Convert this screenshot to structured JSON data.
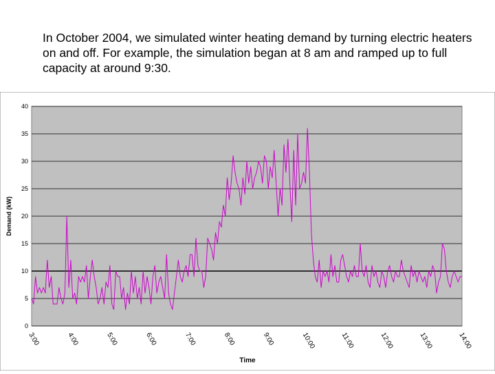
{
  "caption": "In October 2004, we simulated winter heating demand by turning electric heaters on and off.  For example, the simulation began at 8 am and ramped up to full capacity at around 9:30.",
  "colors": {
    "plot_bg": "#c0c0c0",
    "series": "#cc00cc",
    "grid": "#000000",
    "border": "#808080"
  },
  "chart_data": {
    "type": "line",
    "title": "",
    "xlabel": "Time",
    "ylabel": "Demand (kW)",
    "ylim": [
      0,
      40
    ],
    "yticks": [
      "0",
      "5",
      "10",
      "15",
      "20",
      "25",
      "30",
      "35",
      "40"
    ],
    "xlim": [
      3,
      14
    ],
    "xticks": [
      "3:00",
      "4:00",
      "5:00",
      "6:00",
      "7:00",
      "8:00",
      "9:00",
      "10:00",
      "11:00",
      "12:00",
      "13:00",
      "14:00"
    ],
    "grid": true,
    "legend": "none",
    "reference_line": 10,
    "series": [
      {
        "x": [
          3.0,
          3.05,
          3.1,
          3.15,
          3.2,
          3.25,
          3.3,
          3.35,
          3.4,
          3.45,
          3.5,
          3.55,
          3.6,
          3.65,
          3.7,
          3.75,
          3.8,
          3.85,
          3.9,
          3.95,
          4.0,
          4.05,
          4.1,
          4.15,
          4.2,
          4.25,
          4.3,
          4.35,
          4.4,
          4.45,
          4.5,
          4.55,
          4.6,
          4.65,
          4.7,
          4.75,
          4.8,
          4.85,
          4.9,
          4.95,
          5.0,
          5.05,
          5.1,
          5.15,
          5.2,
          5.25,
          5.3,
          5.35,
          5.4,
          5.45,
          5.5,
          5.55,
          5.6,
          5.65,
          5.7,
          5.75,
          5.8,
          5.85,
          5.9,
          5.95,
          6.0,
          6.05,
          6.1,
          6.15,
          6.2,
          6.25,
          6.3,
          6.35,
          6.4,
          6.45,
          6.5,
          6.55,
          6.6,
          6.65,
          6.7,
          6.75,
          6.8,
          6.85,
          6.9,
          6.95,
          7.0,
          7.05,
          7.1,
          7.15,
          7.2,
          7.25,
          7.3,
          7.35,
          7.4,
          7.45,
          7.5,
          7.55,
          7.6,
          7.65,
          7.7,
          7.75,
          7.8,
          7.85,
          7.9,
          7.95,
          8.0,
          8.05,
          8.1,
          8.15,
          8.2,
          8.25,
          8.3,
          8.35,
          8.4,
          8.45,
          8.5,
          8.55,
          8.6,
          8.65,
          8.7,
          8.75,
          8.8,
          8.85,
          8.9,
          8.95,
          9.0,
          9.05,
          9.1,
          9.15,
          9.2,
          9.25,
          9.3,
          9.35,
          9.4,
          9.45,
          9.5,
          9.55,
          9.6,
          9.65,
          9.7,
          9.75,
          9.8,
          9.85,
          9.9,
          9.95,
          10.0,
          10.05,
          10.1,
          10.15,
          10.2,
          10.25,
          10.3,
          10.35,
          10.4,
          10.45,
          10.5,
          10.55,
          10.6,
          10.65,
          10.7,
          10.75,
          10.8,
          10.85,
          10.9,
          10.95,
          11.0,
          11.05,
          11.1,
          11.15,
          11.2,
          11.25,
          11.3,
          11.35,
          11.4,
          11.45,
          11.5,
          11.55,
          11.6,
          11.65,
          11.7,
          11.75,
          11.8,
          11.85,
          11.9,
          11.95,
          12.0,
          12.05,
          12.1,
          12.15,
          12.2,
          12.25,
          12.3,
          12.35,
          12.4,
          12.45,
          12.5,
          12.55,
          12.6,
          12.65,
          12.7,
          12.75,
          12.8,
          12.85,
          12.9,
          12.95,
          13.0,
          13.05,
          13.1,
          13.15,
          13.2,
          13.25,
          13.3,
          13.35,
          13.4,
          13.45,
          13.5,
          13.55,
          13.6,
          13.65,
          13.7,
          13.75,
          13.8,
          13.85,
          13.9,
          13.95,
          14.0
        ],
        "y": [
          5,
          4,
          9,
          6,
          7,
          6,
          7,
          6,
          12,
          7,
          9,
          4,
          4,
          4,
          7,
          5,
          4,
          6,
          20,
          7,
          12,
          5,
          6,
          4,
          9,
          8,
          9,
          8,
          11,
          5,
          9,
          12,
          9,
          7,
          4,
          5,
          7,
          4,
          8,
          7,
          11,
          4,
          3,
          10,
          9,
          9,
          5,
          7,
          3,
          6,
          4,
          10,
          6,
          9,
          5,
          7,
          4,
          10,
          6,
          9,
          7,
          4,
          9,
          11,
          6,
          8,
          9,
          7,
          5,
          13,
          6,
          4,
          3,
          6,
          9,
          12,
          9,
          8,
          10,
          11,
          9,
          13,
          13,
          9,
          16,
          11,
          10,
          10,
          7,
          9,
          16,
          15,
          14,
          12,
          17,
          15,
          19,
          18,
          22,
          20,
          27,
          23,
          26,
          31,
          28,
          26,
          25,
          22,
          27,
          24,
          30,
          26,
          29,
          25,
          27,
          28,
          30,
          29,
          26,
          31,
          30,
          25,
          29,
          27,
          32,
          26,
          20,
          25,
          22,
          33,
          28,
          34,
          26,
          19,
          32,
          22,
          35,
          25,
          26,
          28,
          26,
          36,
          28,
          17,
          12,
          9,
          8,
          12,
          7,
          10,
          9,
          10,
          8,
          13,
          9,
          11,
          8,
          8,
          12,
          13,
          11,
          9,
          8,
          10,
          9,
          11,
          9,
          9,
          15,
          10,
          9,
          11,
          8,
          7,
          11,
          9,
          10,
          8,
          7,
          10,
          9,
          7,
          10,
          11,
          9,
          8,
          10,
          9,
          9,
          12,
          10,
          9,
          8,
          7,
          11,
          9,
          10,
          8,
          10,
          9,
          8,
          9,
          7,
          10,
          9,
          11,
          10,
          6,
          8,
          9,
          15,
          14,
          10,
          8,
          7,
          9,
          10,
          9,
          8,
          9,
          9
        ]
      }
    ]
  }
}
